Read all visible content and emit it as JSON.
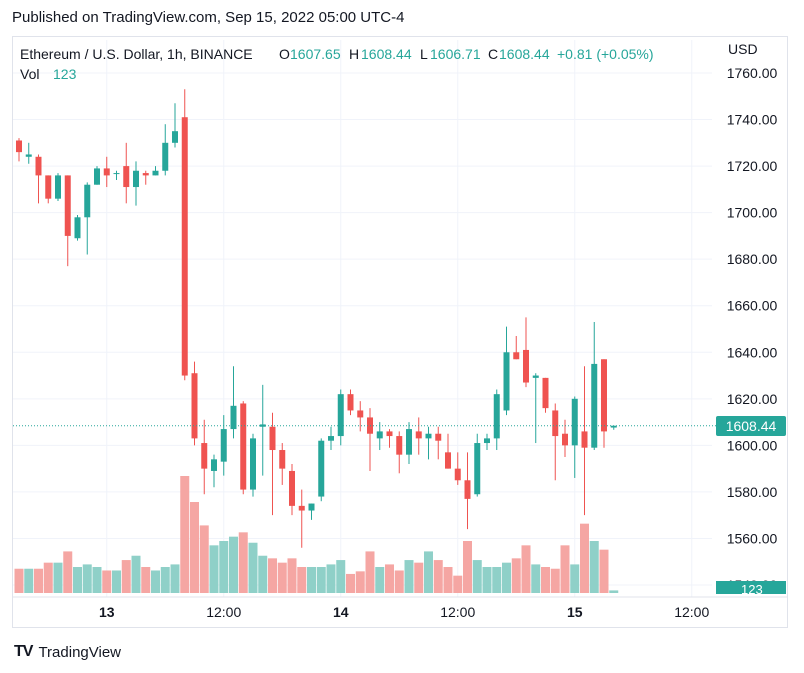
{
  "published": "Published on TradingView.com, Sep 15, 2022 05:00 UTC-4",
  "header": {
    "symbol": "Ethereum / U.S. Dollar, 1h, BINANCE",
    "o_label": "O",
    "o_value": "1607.65",
    "h_label": "H",
    "h_value": "1608.44",
    "l_label": "L",
    "l_value": "1606.71",
    "c_label": "C",
    "c_value": "1608.44",
    "change": "+0.81 (+0.05%)",
    "vol_label": "Vol",
    "vol_value": "123"
  },
  "currency": "USD",
  "price_tag": "1608.44",
  "volume_tag": "123",
  "footer": "TradingView",
  "colors": {
    "up": "#26a69a",
    "down": "#ef5350",
    "up_vol": "#8fd0c8",
    "down_vol": "#f5a6a3",
    "text": "#131722",
    "axis_text": "#131722",
    "grid": "#f0f3fa"
  },
  "chart_data": {
    "type": "candlestick",
    "ylim": [
      1540,
      1760
    ],
    "y_ticks": [
      1540,
      1560,
      1580,
      1600,
      1620,
      1640,
      1660,
      1680,
      1700,
      1720,
      1740,
      1760
    ],
    "y_tick_labels": [
      "1540.00",
      "1560.00",
      "1580.00",
      "1600.00",
      "1620.00",
      "1640.00",
      "1660.00",
      "1680.00",
      "1700.00",
      "1720.00",
      "1740.00",
      "1760.00"
    ],
    "x_ticks": [
      {
        "index": 9,
        "label": "13"
      },
      {
        "index": 21,
        "label": "12:00"
      },
      {
        "index": 33,
        "label": "14"
      },
      {
        "index": 45,
        "label": "12:00"
      },
      {
        "index": 57,
        "label": "15"
      },
      {
        "index": 69,
        "label": "12:00"
      }
    ],
    "last_price": 1608.44,
    "candles": [
      {
        "o": 1731,
        "h": 1732,
        "l": 1722,
        "c": 1726,
        "v": 28
      },
      {
        "o": 1724,
        "h": 1730,
        "l": 1721,
        "c": 1725,
        "v": 28
      },
      {
        "o": 1724,
        "h": 1725,
        "l": 1704,
        "c": 1716,
        "v": 28
      },
      {
        "o": 1716,
        "h": 1716,
        "l": 1704,
        "c": 1706,
        "v": 35
      },
      {
        "o": 1706,
        "h": 1717,
        "l": 1705,
        "c": 1716,
        "v": 35
      },
      {
        "o": 1716,
        "h": 1716,
        "l": 1677,
        "c": 1690,
        "v": 48
      },
      {
        "o": 1689,
        "h": 1699,
        "l": 1688,
        "c": 1698,
        "v": 30
      },
      {
        "o": 1698,
        "h": 1713,
        "l": 1682,
        "c": 1712,
        "v": 33
      },
      {
        "o": 1712,
        "h": 1720,
        "l": 1712,
        "c": 1719,
        "v": 30
      },
      {
        "o": 1719,
        "h": 1724,
        "l": 1711,
        "c": 1716,
        "v": 26
      },
      {
        "o": 1717,
        "h": 1718,
        "l": 1714,
        "c": 1717,
        "v": 26
      },
      {
        "o": 1720,
        "h": 1730,
        "l": 1704,
        "c": 1711,
        "v": 38
      },
      {
        "o": 1711,
        "h": 1722,
        "l": 1703,
        "c": 1718,
        "v": 43
      },
      {
        "o": 1717,
        "h": 1718,
        "l": 1712,
        "c": 1716,
        "v": 30
      },
      {
        "o": 1716,
        "h": 1720,
        "l": 1716,
        "c": 1718,
        "v": 26
      },
      {
        "o": 1718,
        "h": 1738,
        "l": 1716,
        "c": 1730,
        "v": 30
      },
      {
        "o": 1730,
        "h": 1747,
        "l": 1728,
        "c": 1735,
        "v": 33
      },
      {
        "o": 1741,
        "h": 1753,
        "l": 1628,
        "c": 1630,
        "v": 135
      },
      {
        "o": 1631,
        "h": 1636,
        "l": 1600,
        "c": 1603,
        "v": 105
      },
      {
        "o": 1601,
        "h": 1611,
        "l": 1579,
        "c": 1590,
        "v": 78
      },
      {
        "o": 1589,
        "h": 1596,
        "l": 1582,
        "c": 1594,
        "v": 55
      },
      {
        "o": 1593,
        "h": 1613,
        "l": 1587,
        "c": 1607,
        "v": 60
      },
      {
        "o": 1607,
        "h": 1634,
        "l": 1603,
        "c": 1617,
        "v": 65
      },
      {
        "o": 1618,
        "h": 1619,
        "l": 1579,
        "c": 1581,
        "v": 70
      },
      {
        "o": 1581,
        "h": 1605,
        "l": 1578,
        "c": 1603,
        "v": 58
      },
      {
        "o": 1608,
        "h": 1626,
        "l": 1587,
        "c": 1609,
        "v": 43
      },
      {
        "o": 1608,
        "h": 1614,
        "l": 1570,
        "c": 1598,
        "v": 40
      },
      {
        "o": 1598,
        "h": 1601,
        "l": 1583,
        "c": 1590,
        "v": 35
      },
      {
        "o": 1589,
        "h": 1592,
        "l": 1570,
        "c": 1574,
        "v": 40
      },
      {
        "o": 1574,
        "h": 1581,
        "l": 1556,
        "c": 1572,
        "v": 30
      },
      {
        "o": 1572,
        "h": 1575,
        "l": 1568,
        "c": 1575,
        "v": 30
      },
      {
        "o": 1578,
        "h": 1603,
        "l": 1576,
        "c": 1602,
        "v": 30
      },
      {
        "o": 1602,
        "h": 1608,
        "l": 1598,
        "c": 1604,
        "v": 33
      },
      {
        "o": 1604,
        "h": 1624,
        "l": 1600,
        "c": 1622,
        "v": 38
      },
      {
        "o": 1622,
        "h": 1624,
        "l": 1613,
        "c": 1615,
        "v": 22
      },
      {
        "o": 1615,
        "h": 1619,
        "l": 1606,
        "c": 1612,
        "v": 25
      },
      {
        "o": 1612,
        "h": 1616,
        "l": 1589,
        "c": 1605,
        "v": 48
      },
      {
        "o": 1603,
        "h": 1610,
        "l": 1598,
        "c": 1606,
        "v": 30
      },
      {
        "o": 1606,
        "h": 1607,
        "l": 1599,
        "c": 1604,
        "v": 33
      },
      {
        "o": 1604,
        "h": 1606,
        "l": 1588,
        "c": 1596,
        "v": 26
      },
      {
        "o": 1596,
        "h": 1610,
        "l": 1592,
        "c": 1607,
        "v": 38
      },
      {
        "o": 1606,
        "h": 1612,
        "l": 1596,
        "c": 1603,
        "v": 35
      },
      {
        "o": 1603,
        "h": 1608,
        "l": 1594,
        "c": 1605,
        "v": 48
      },
      {
        "o": 1605,
        "h": 1608,
        "l": 1594,
        "c": 1602,
        "v": 38
      },
      {
        "o": 1597,
        "h": 1605,
        "l": 1590,
        "c": 1590,
        "v": 30
      },
      {
        "o": 1590,
        "h": 1597,
        "l": 1583,
        "c": 1585,
        "v": 20
      },
      {
        "o": 1585,
        "h": 1597,
        "l": 1564,
        "c": 1577,
        "v": 60
      },
      {
        "o": 1579,
        "h": 1605,
        "l": 1578,
        "c": 1601,
        "v": 38
      },
      {
        "o": 1601,
        "h": 1605,
        "l": 1598,
        "c": 1603,
        "v": 30
      },
      {
        "o": 1603,
        "h": 1624,
        "l": 1598,
        "c": 1622,
        "v": 30
      },
      {
        "o": 1615,
        "h": 1651,
        "l": 1613,
        "c": 1640,
        "v": 35
      },
      {
        "o": 1640,
        "h": 1647,
        "l": 1637,
        "c": 1637,
        "v": 40
      },
      {
        "o": 1641,
        "h": 1655,
        "l": 1625,
        "c": 1627,
        "v": 55
      },
      {
        "o": 1629,
        "h": 1631,
        "l": 1601,
        "c": 1630,
        "v": 33
      },
      {
        "o": 1629,
        "h": 1629,
        "l": 1614,
        "c": 1616,
        "v": 30
      },
      {
        "o": 1615,
        "h": 1618,
        "l": 1585,
        "c": 1604,
        "v": 28
      },
      {
        "o": 1605,
        "h": 1611,
        "l": 1595,
        "c": 1600,
        "v": 55
      },
      {
        "o": 1600,
        "h": 1621,
        "l": 1586,
        "c": 1620,
        "v": 33
      },
      {
        "o": 1606,
        "h": 1634,
        "l": 1570,
        "c": 1599,
        "v": 80
      },
      {
        "o": 1599,
        "h": 1653,
        "l": 1598,
        "c": 1635,
        "v": 60
      },
      {
        "o": 1637,
        "h": 1637,
        "l": 1599,
        "c": 1606,
        "v": 50
      },
      {
        "o": 1607.65,
        "h": 1608.44,
        "l": 1606.71,
        "c": 1608.44,
        "v": 3
      }
    ]
  }
}
